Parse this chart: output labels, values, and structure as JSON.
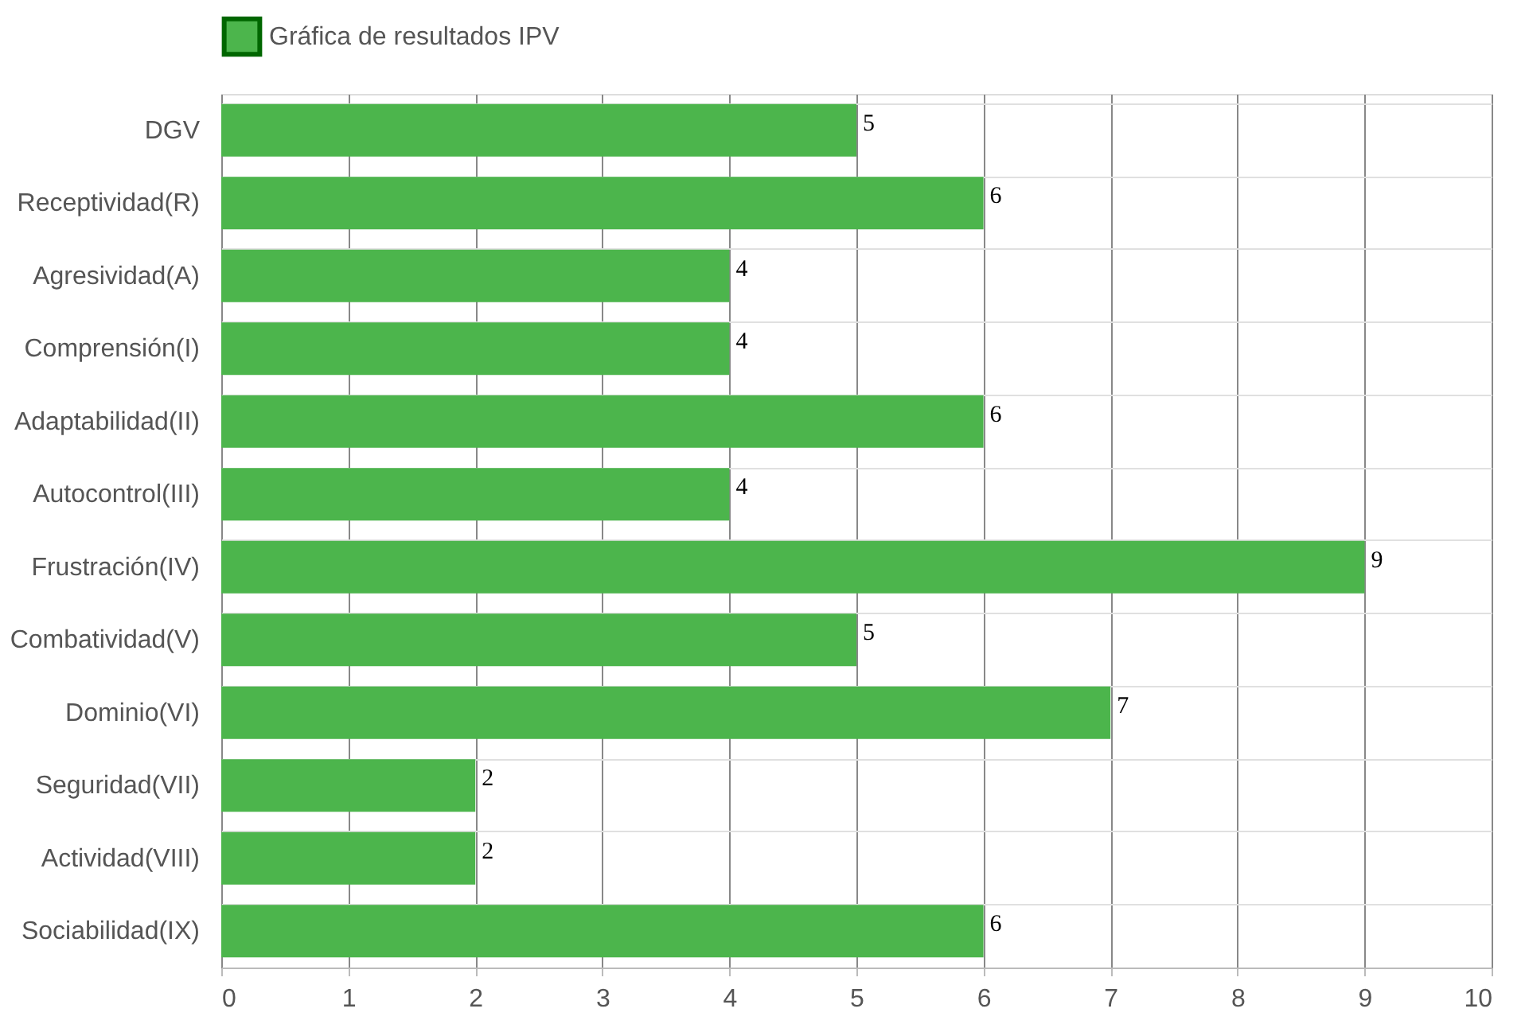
{
  "chart_data": {
    "type": "bar",
    "orientation": "horizontal",
    "categories": [
      "DGV",
      "Receptividad(R)",
      "Agresividad(A)",
      "Comprensión(I)",
      "Adaptabilidad(II)",
      "Autocontrol(III)",
      "Frustración(IV)",
      "Combatividad(V)",
      "Dominio(VI)",
      "Seguridad(VII)",
      "Actividad(VIII)",
      "Sociabilidad(IX)"
    ],
    "series": [
      {
        "name": "Gráfica de resultados IPV",
        "color": "#4cb54c",
        "values": [
          5,
          6,
          4,
          4,
          6,
          4,
          9,
          5,
          7,
          2,
          2,
          6
        ]
      }
    ],
    "xlim": [
      0,
      10
    ],
    "xticks": [
      0,
      1,
      2,
      3,
      4,
      5,
      6,
      7,
      8,
      9,
      10
    ],
    "grid": true,
    "legend": "top",
    "data_labels": true
  }
}
